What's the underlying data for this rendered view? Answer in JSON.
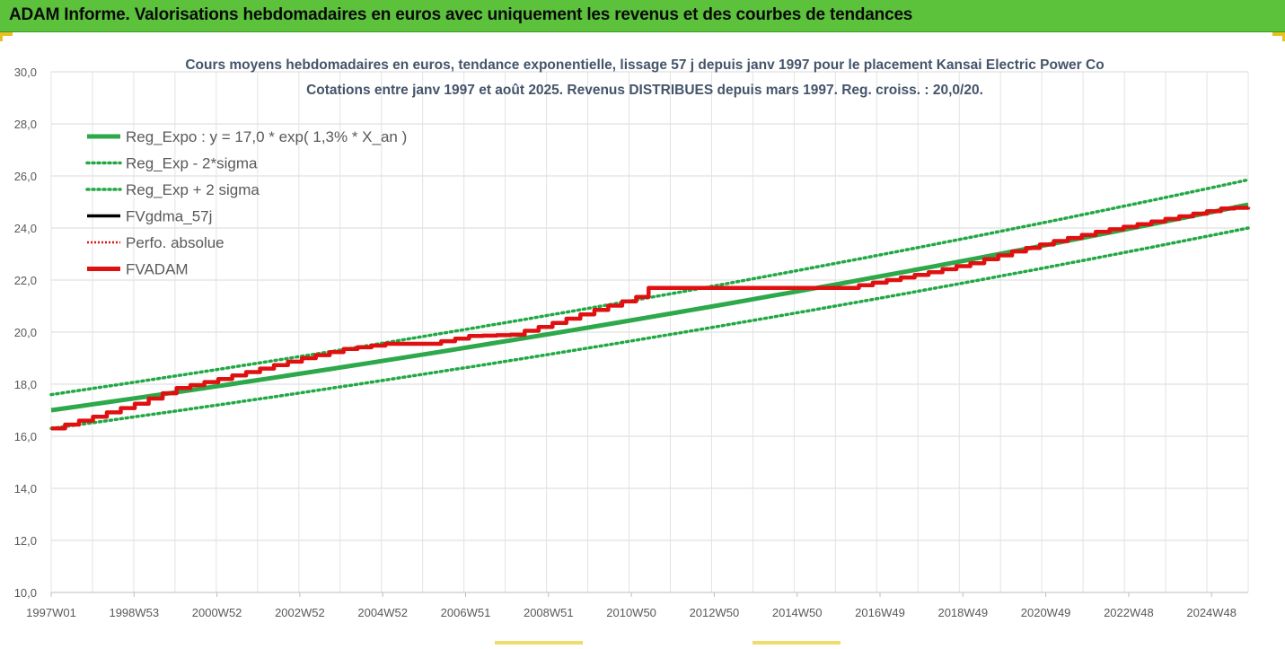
{
  "header": {
    "title": "ADAM Informe. Valorisations hebdomadaires en euros avec uniquement les revenus et des courbes de tendances"
  },
  "colors": {
    "header_bg": "#5cc23c",
    "reg_green": "#2da84a",
    "dotted_green": "#22a845",
    "black": "#000000",
    "red": "#e01010"
  },
  "chart_data": {
    "type": "line",
    "title_line1": "Cours moyens hebdomadaires en euros, tendance exponentielle, lissage 57 j depuis janv 1997  pour le placement Kansai Electric Power Co",
    "title_line2": "Cotations entre janv 1997 et août 2025. Revenus DISTRIBUES depuis mars 1997. Reg. croiss. : 20,0/20.",
    "ylim": [
      10,
      30
    ],
    "xlim": [
      1997.0,
      2025.65
    ],
    "grid": true,
    "legend_position": "top-left",
    "yticks": [
      "10,0",
      "12,0",
      "14,0",
      "16,0",
      "18,0",
      "20,0",
      "22,0",
      "24,0",
      "26,0",
      "28,0",
      "30,0"
    ],
    "xtick_labels": [
      "1997W01",
      "1998W53",
      "2000W52",
      "2002W52",
      "2004W52",
      "2006W51",
      "2008W51",
      "2010W50",
      "2012W50",
      "2014W50",
      "2016W49",
      "2018W49",
      "2020W49",
      "2022W48",
      "2024W48"
    ],
    "legend": [
      {
        "name": "Reg_Expo : y = 17,0 * exp( 1,3% *  X_an )",
        "style": "solid-green-thick"
      },
      {
        "name": "Reg_Exp - 2*sigma",
        "style": "dotted-green"
      },
      {
        "name": "Reg_Exp + 2 sigma",
        "style": "dotted-green"
      },
      {
        "name": "FVgdma_57j",
        "style": "solid-black"
      },
      {
        "name": "Perfo. absolue",
        "style": "dotted-red"
      },
      {
        "name": "FVADAM",
        "style": "solid-red-thick"
      }
    ],
    "reg_expo": {
      "x": [
        1997.0,
        2025.65
      ],
      "y": [
        17.0,
        24.9
      ]
    },
    "reg_minus_2sigma": {
      "x": [
        1997.0,
        2025.65
      ],
      "y": [
        16.3,
        24.0
      ]
    },
    "reg_plus_2sigma": {
      "x": [
        1997.0,
        2025.65
      ],
      "y": [
        17.6,
        25.85
      ]
    },
    "fvadam": {
      "x": [
        1997.0,
        1998.0,
        1999.0,
        2000.0,
        2001.0,
        2002.0,
        2003.0,
        2004.0,
        2005.0,
        2006.0,
        2007.0,
        2008.0,
        2009.0,
        2010.0,
        2011.0,
        2011.3,
        2015.0,
        2016.0,
        2017.0,
        2018.0,
        2019.0,
        2020.0,
        2021.0,
        2022.0,
        2023.0,
        2024.0,
        2025.0,
        2025.65
      ],
      "y": [
        16.3,
        16.75,
        17.25,
        17.85,
        18.2,
        18.6,
        19.0,
        19.35,
        19.55,
        19.55,
        19.85,
        19.9,
        20.35,
        20.85,
        21.35,
        21.7,
        21.7,
        21.7,
        22.0,
        22.3,
        22.65,
        23.1,
        23.5,
        23.85,
        24.15,
        24.45,
        24.75,
        24.8
      ]
    }
  }
}
